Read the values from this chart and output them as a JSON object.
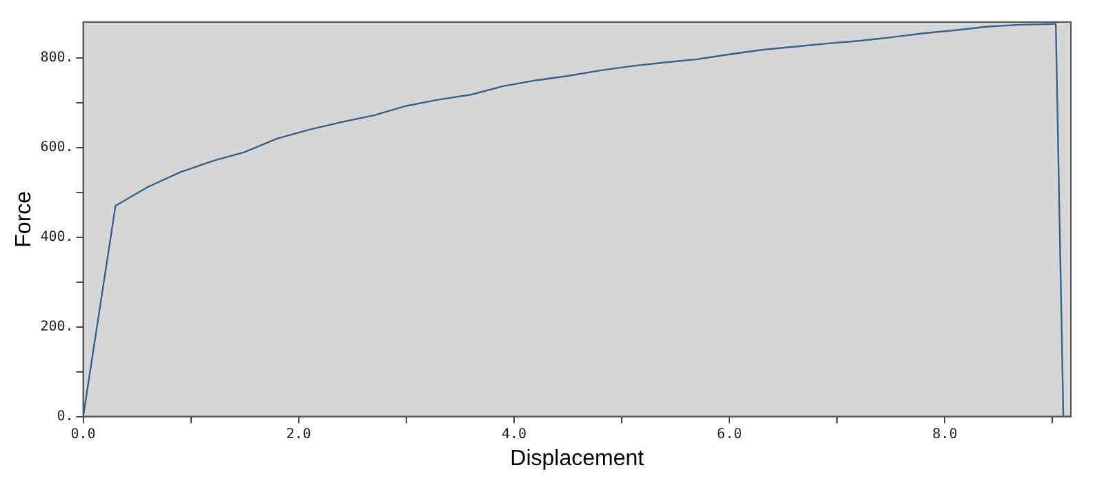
{
  "chart_data": {
    "type": "line",
    "xlabel": "Displacement",
    "ylabel": "Force",
    "x": [
      0,
      0.3,
      0.6,
      0.9,
      1.2,
      1.5,
      1.8,
      2.1,
      2.4,
      2.7,
      3.0,
      3.3,
      3.6,
      3.9,
      4.2,
      4.5,
      4.8,
      5.1,
      5.4,
      5.7,
      6.0,
      6.3,
      6.6,
      6.9,
      7.2,
      7.5,
      7.8,
      8.1,
      8.4,
      8.7,
      9.03,
      9.1
    ],
    "series": [
      {
        "color": "#3a5f8a",
        "values": [
          0,
          470,
          512,
          545,
          570,
          590,
          620,
          640,
          657,
          672,
          693,
          707,
          718,
          737,
          750,
          760,
          772,
          782,
          790,
          797,
          808,
          818,
          825,
          832,
          838,
          846,
          855,
          862,
          870,
          874,
          876,
          0
        ]
      }
    ],
    "xlim": [
      0,
      9.17
    ],
    "ylim": [
      0,
      880
    ],
    "xticks": [
      {
        "value": 0,
        "label": "0.0"
      },
      {
        "value": 1,
        "label": null
      },
      {
        "value": 2,
        "label": "2.0"
      },
      {
        "value": 3,
        "label": null
      },
      {
        "value": 4,
        "label": "4.0"
      },
      {
        "value": 5,
        "label": null
      },
      {
        "value": 6,
        "label": "6.0"
      },
      {
        "value": 7,
        "label": null
      },
      {
        "value": 8,
        "label": "8.0"
      },
      {
        "value": 9,
        "label": null
      }
    ],
    "yticks": [
      {
        "value": 0,
        "label": "0."
      },
      {
        "value": 100,
        "label": null
      },
      {
        "value": 200,
        "label": "200."
      },
      {
        "value": 300,
        "label": null
      },
      {
        "value": 400,
        "label": "400."
      },
      {
        "value": 500,
        "label": null
      },
      {
        "value": 600,
        "label": "600."
      },
      {
        "value": 700,
        "label": null
      },
      {
        "value": 800,
        "label": "800."
      }
    ],
    "grid": false,
    "legend": false,
    "marker": "none",
    "line_style": "solid"
  }
}
